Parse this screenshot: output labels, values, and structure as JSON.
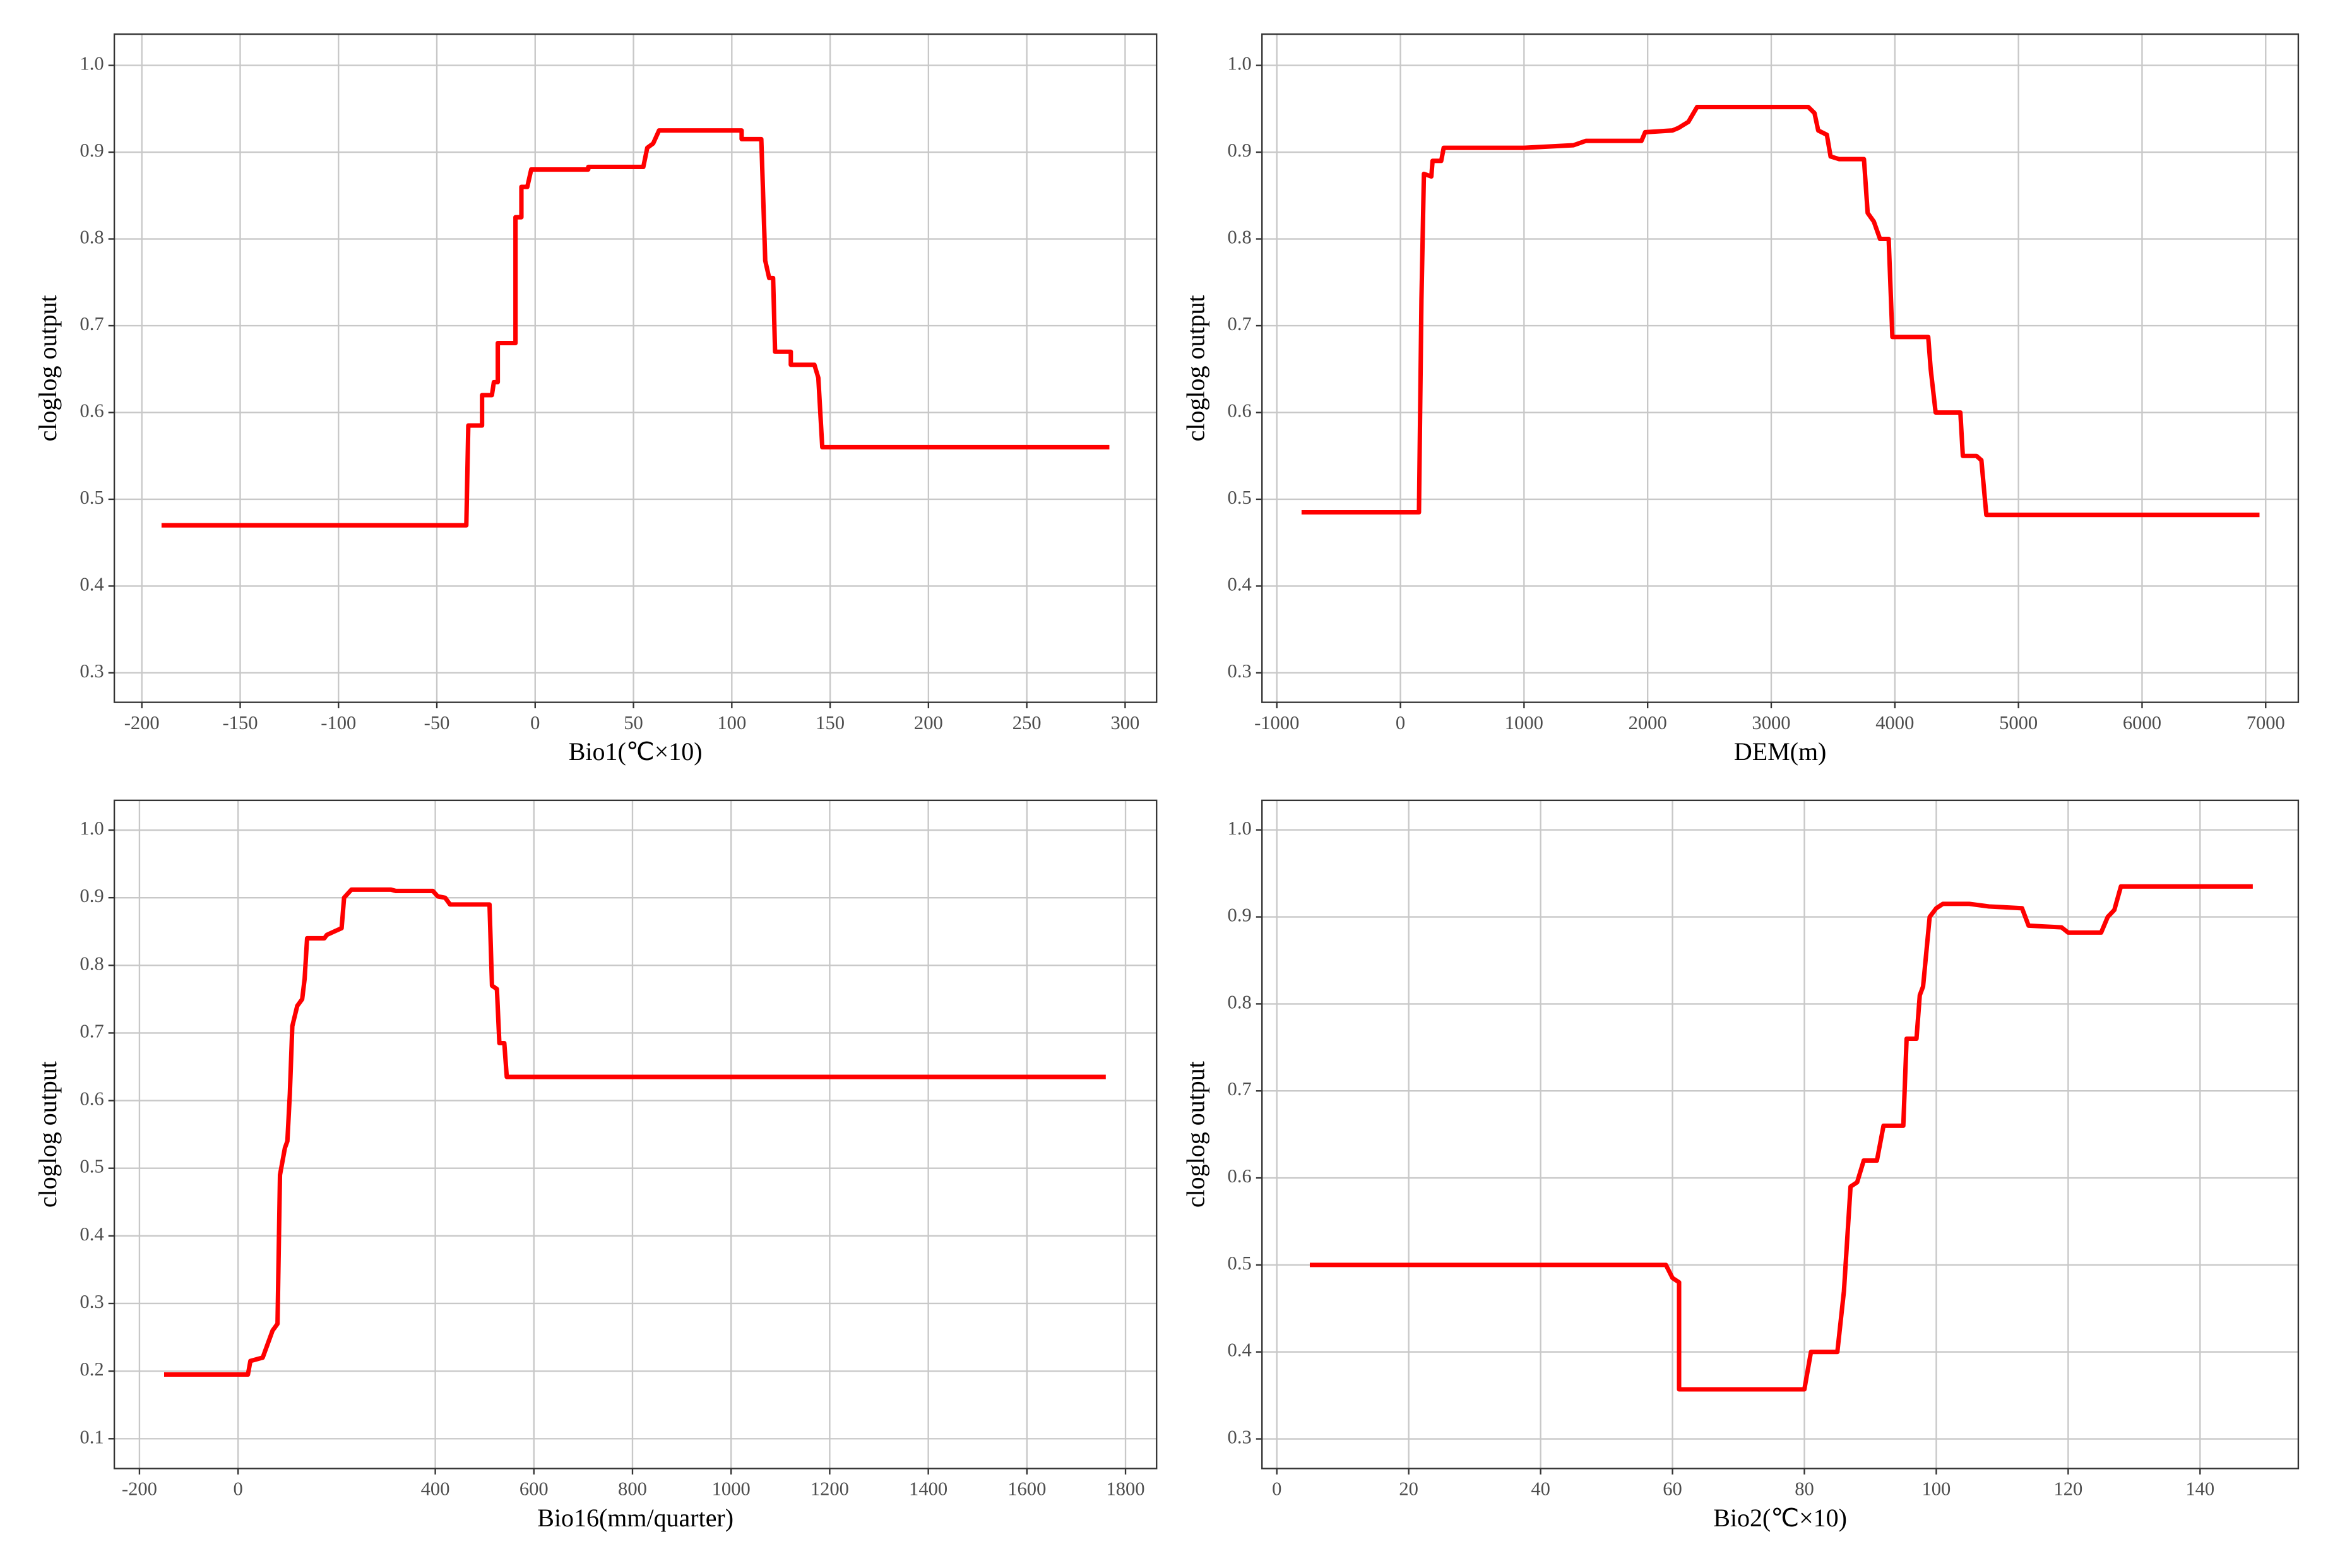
{
  "chart_data": [
    {
      "type": "line",
      "x_label": "Bio1(℃×10)",
      "y_label": "cloglog output",
      "grid": true,
      "xlim": [
        -214,
        316
      ],
      "ylim": [
        0.266,
        1.036
      ],
      "xticks": [
        -200,
        -150,
        -100,
        -50,
        0,
        50,
        100,
        150,
        200,
        250,
        300
      ],
      "yticks": [
        0.3,
        0.4,
        0.5,
        0.6,
        0.7,
        0.8,
        0.9,
        {
          "value": 1,
          "label": "1.0"
        }
      ],
      "color": "#ff0000",
      "x": [
        -190,
        -35,
        -34,
        -27,
        -27,
        -22,
        -21,
        -19,
        -19,
        -10,
        -10,
        -7,
        -7,
        -4,
        -2,
        27,
        27,
        55,
        57,
        60,
        63,
        105,
        105,
        115,
        117,
        119,
        121,
        122,
        130,
        130,
        142,
        144,
        146,
        292
      ],
      "values": [
        0.47,
        0.47,
        0.585,
        0.585,
        0.62,
        0.62,
        0.635,
        0.635,
        0.68,
        0.68,
        0.825,
        0.825,
        0.86,
        0.86,
        0.88,
        0.88,
        0.883,
        0.883,
        0.905,
        0.91,
        0.925,
        0.925,
        0.915,
        0.915,
        0.775,
        0.755,
        0.755,
        0.67,
        0.67,
        0.655,
        0.655,
        0.64,
        0.56,
        0.56
      ]
    },
    {
      "type": "line",
      "x_label": "DEM(m)",
      "y_label": "cloglog output",
      "grid": true,
      "xlim": [
        -1120,
        7264
      ],
      "ylim": [
        0.266,
        1.036
      ],
      "xticks": [
        -1000,
        0,
        1000,
        2000,
        3000,
        4000,
        5000,
        6000,
        7000
      ],
      "yticks": [
        0.3,
        0.4,
        0.5,
        0.6,
        0.7,
        0.8,
        0.9,
        {
          "value": 1,
          "label": "1.0"
        }
      ],
      "color": "#ff0000",
      "x": [
        -800,
        150,
        170,
        190,
        250,
        260,
        330,
        350,
        1000,
        1400,
        1500,
        1950,
        1980,
        2200,
        2250,
        2330,
        2400,
        3300,
        3350,
        3380,
        3450,
        3480,
        3550,
        3750,
        3780,
        3830,
        3880,
        3950,
        3980,
        4270,
        4290,
        4330,
        4530,
        4550,
        4660,
        4700,
        4740,
        6950
      ],
      "values": [
        0.485,
        0.485,
        0.73,
        0.875,
        0.872,
        0.89,
        0.89,
        0.905,
        0.905,
        0.908,
        0.913,
        0.913,
        0.923,
        0.925,
        0.928,
        0.935,
        0.952,
        0.952,
        0.945,
        0.925,
        0.92,
        0.895,
        0.892,
        0.892,
        0.83,
        0.82,
        0.8,
        0.8,
        0.687,
        0.687,
        0.65,
        0.6,
        0.6,
        0.55,
        0.55,
        0.545,
        0.482,
        0.482
      ]
    },
    {
      "type": "line",
      "x_label": "Bio16(mm/quarter)",
      "y_label": "cloglog output",
      "grid": true,
      "xlim": [
        -251,
        1863
      ],
      "ylim": [
        0.056,
        1.044
      ],
      "xticks": [
        -200,
        0,
        400,
        600,
        800,
        1000,
        1200,
        1400,
        1600,
        1800
      ],
      "yticks": [
        0.1,
        0.2,
        0.3,
        0.4,
        0.5,
        0.6,
        0.7,
        0.8,
        0.9,
        {
          "value": 1,
          "label": "1.0"
        }
      ],
      "color": "#ff0000",
      "x": [
        -150,
        20,
        25,
        50,
        60,
        70,
        80,
        85,
        95,
        100,
        105,
        110,
        120,
        130,
        135,
        140,
        175,
        180,
        195,
        210,
        215,
        230,
        310,
        320,
        395,
        405,
        420,
        430,
        510,
        515,
        525,
        530,
        540,
        545,
        1760
      ],
      "values": [
        0.195,
        0.195,
        0.215,
        0.22,
        0.24,
        0.26,
        0.27,
        0.49,
        0.53,
        0.54,
        0.61,
        0.71,
        0.74,
        0.75,
        0.78,
        0.84,
        0.84,
        0.845,
        0.85,
        0.855,
        0.9,
        0.912,
        0.912,
        0.91,
        0.91,
        0.902,
        0.9,
        0.89,
        0.89,
        0.77,
        0.765,
        0.685,
        0.685,
        0.635,
        0.635
      ]
    },
    {
      "type": "line",
      "x_label": "Bio2(℃×10)",
      "y_label": "cloglog output",
      "grid": true,
      "xlim": [
        -2.25,
        154.9
      ],
      "ylim": [
        0.266,
        1.034
      ],
      "xticks": [
        0,
        20,
        40,
        60,
        80,
        100,
        120,
        140
      ],
      "yticks": [
        0.3,
        0.4,
        0.5,
        0.6,
        0.7,
        0.8,
        0.9,
        {
          "value": 1,
          "label": "1.0"
        }
      ],
      "color": "#ff0000",
      "x": [
        5,
        59,
        60,
        61,
        61,
        80,
        81,
        85,
        86,
        87,
        88,
        89,
        91,
        92,
        95,
        95.5,
        97,
        97.5,
        98,
        99,
        100,
        101,
        105,
        108,
        113,
        114,
        119,
        120,
        125,
        126,
        127,
        128,
        148
      ],
      "values": [
        0.5,
        0.5,
        0.485,
        0.48,
        0.357,
        0.357,
        0.4,
        0.4,
        0.47,
        0.59,
        0.595,
        0.62,
        0.62,
        0.66,
        0.66,
        0.76,
        0.76,
        0.81,
        0.82,
        0.9,
        0.91,
        0.915,
        0.915,
        0.912,
        0.91,
        0.89,
        0.888,
        0.882,
        0.882,
        0.9,
        0.908,
        0.935,
        0.935
      ]
    }
  ]
}
